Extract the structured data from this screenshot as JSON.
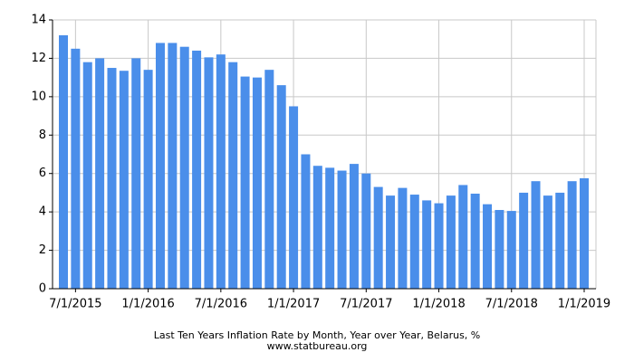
{
  "chart_data": {
    "type": "bar",
    "title": "Last Ten Years Inflation Rate by Month, Year over Year, Belarus, %",
    "subtitle": "www.statbureau.org",
    "categories": [
      null,
      "7/1/2015",
      null,
      null,
      null,
      null,
      null,
      "1/1/2016",
      null,
      null,
      null,
      null,
      null,
      "7/1/2016",
      null,
      null,
      null,
      null,
      null,
      "1/1/2017",
      null,
      null,
      null,
      null,
      null,
      "7/1/2017",
      null,
      null,
      null,
      null,
      null,
      "1/1/2018",
      null,
      null,
      null,
      null,
      null,
      "7/1/2018",
      null,
      null,
      null,
      null,
      null,
      "1/1/2019"
    ],
    "values": [
      13.2,
      12.5,
      11.8,
      12.0,
      11.5,
      11.35,
      12.0,
      11.4,
      12.8,
      12.8,
      12.6,
      12.4,
      12.05,
      12.2,
      11.8,
      11.05,
      11.0,
      11.4,
      10.6,
      9.5,
      7.0,
      6.4,
      6.3,
      6.15,
      6.5,
      6.0,
      5.3,
      4.85,
      5.25,
      4.9,
      4.6,
      4.45,
      4.85,
      5.4,
      4.95,
      4.4,
      4.1,
      4.05,
      5.0,
      5.6,
      4.85,
      5.0,
      5.6,
      5.75
    ],
    "color": "#4a8eea",
    "ylim": [
      0,
      14
    ],
    "yticks": [
      0,
      2,
      4,
      6,
      8,
      10,
      12,
      14
    ],
    "grid": true
  }
}
